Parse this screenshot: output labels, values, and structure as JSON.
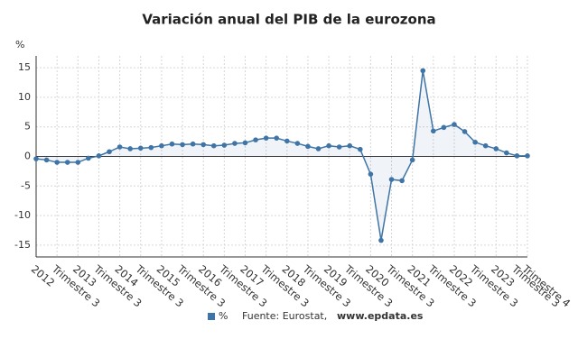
{
  "chart_data": {
    "type": "line",
    "title": "Variación anual del PIB de la eurozona",
    "y_label": "%",
    "source_label": "Fuente: Eurostat,",
    "source_url": "www.epdata.es",
    "categories": [
      "2012",
      null,
      "Trimestre 3",
      null,
      "2013",
      null,
      "Trimestre 3",
      null,
      "2014",
      null,
      "Trimestre 3",
      null,
      "2015",
      null,
      "Trimestre 3",
      null,
      "2016",
      null,
      "Trimestre 3",
      null,
      "2017",
      null,
      "Trimestre 3",
      null,
      "2018",
      null,
      "Trimestre 3",
      null,
      "2019",
      null,
      "Trimestre 3",
      null,
      "2020",
      null,
      "Trimestre 3",
      null,
      "2021",
      null,
      "Trimestre 3",
      null,
      "2022",
      null,
      "Trimestre 3",
      null,
      "2023",
      null,
      "Trimestre 3",
      "Trimestre 4"
    ],
    "series": [
      {
        "name": "%",
        "color": "#3f74a6",
        "values": [
          -0.4,
          -0.6,
          -1.0,
          -1.0,
          -1.0,
          -0.3,
          0.1,
          0.8,
          1.6,
          1.3,
          1.4,
          1.5,
          1.8,
          2.1,
          2.0,
          2.1,
          2.0,
          1.8,
          1.9,
          2.2,
          2.3,
          2.8,
          3.1,
          3.1,
          2.6,
          2.2,
          1.7,
          1.3,
          1.8,
          1.6,
          1.8,
          1.2,
          -3.0,
          -14.2,
          -3.9,
          -4.1,
          -0.6,
          14.5,
          4.3,
          4.9,
          5.4,
          4.2,
          2.4,
          1.8,
          1.3,
          0.6,
          0.1,
          0.1
        ]
      }
    ],
    "ylim": [
      -17,
      17
    ],
    "yticks": [
      -15,
      -10,
      -5,
      0,
      5,
      10,
      15
    ],
    "grid": true,
    "legend": "bottom"
  }
}
